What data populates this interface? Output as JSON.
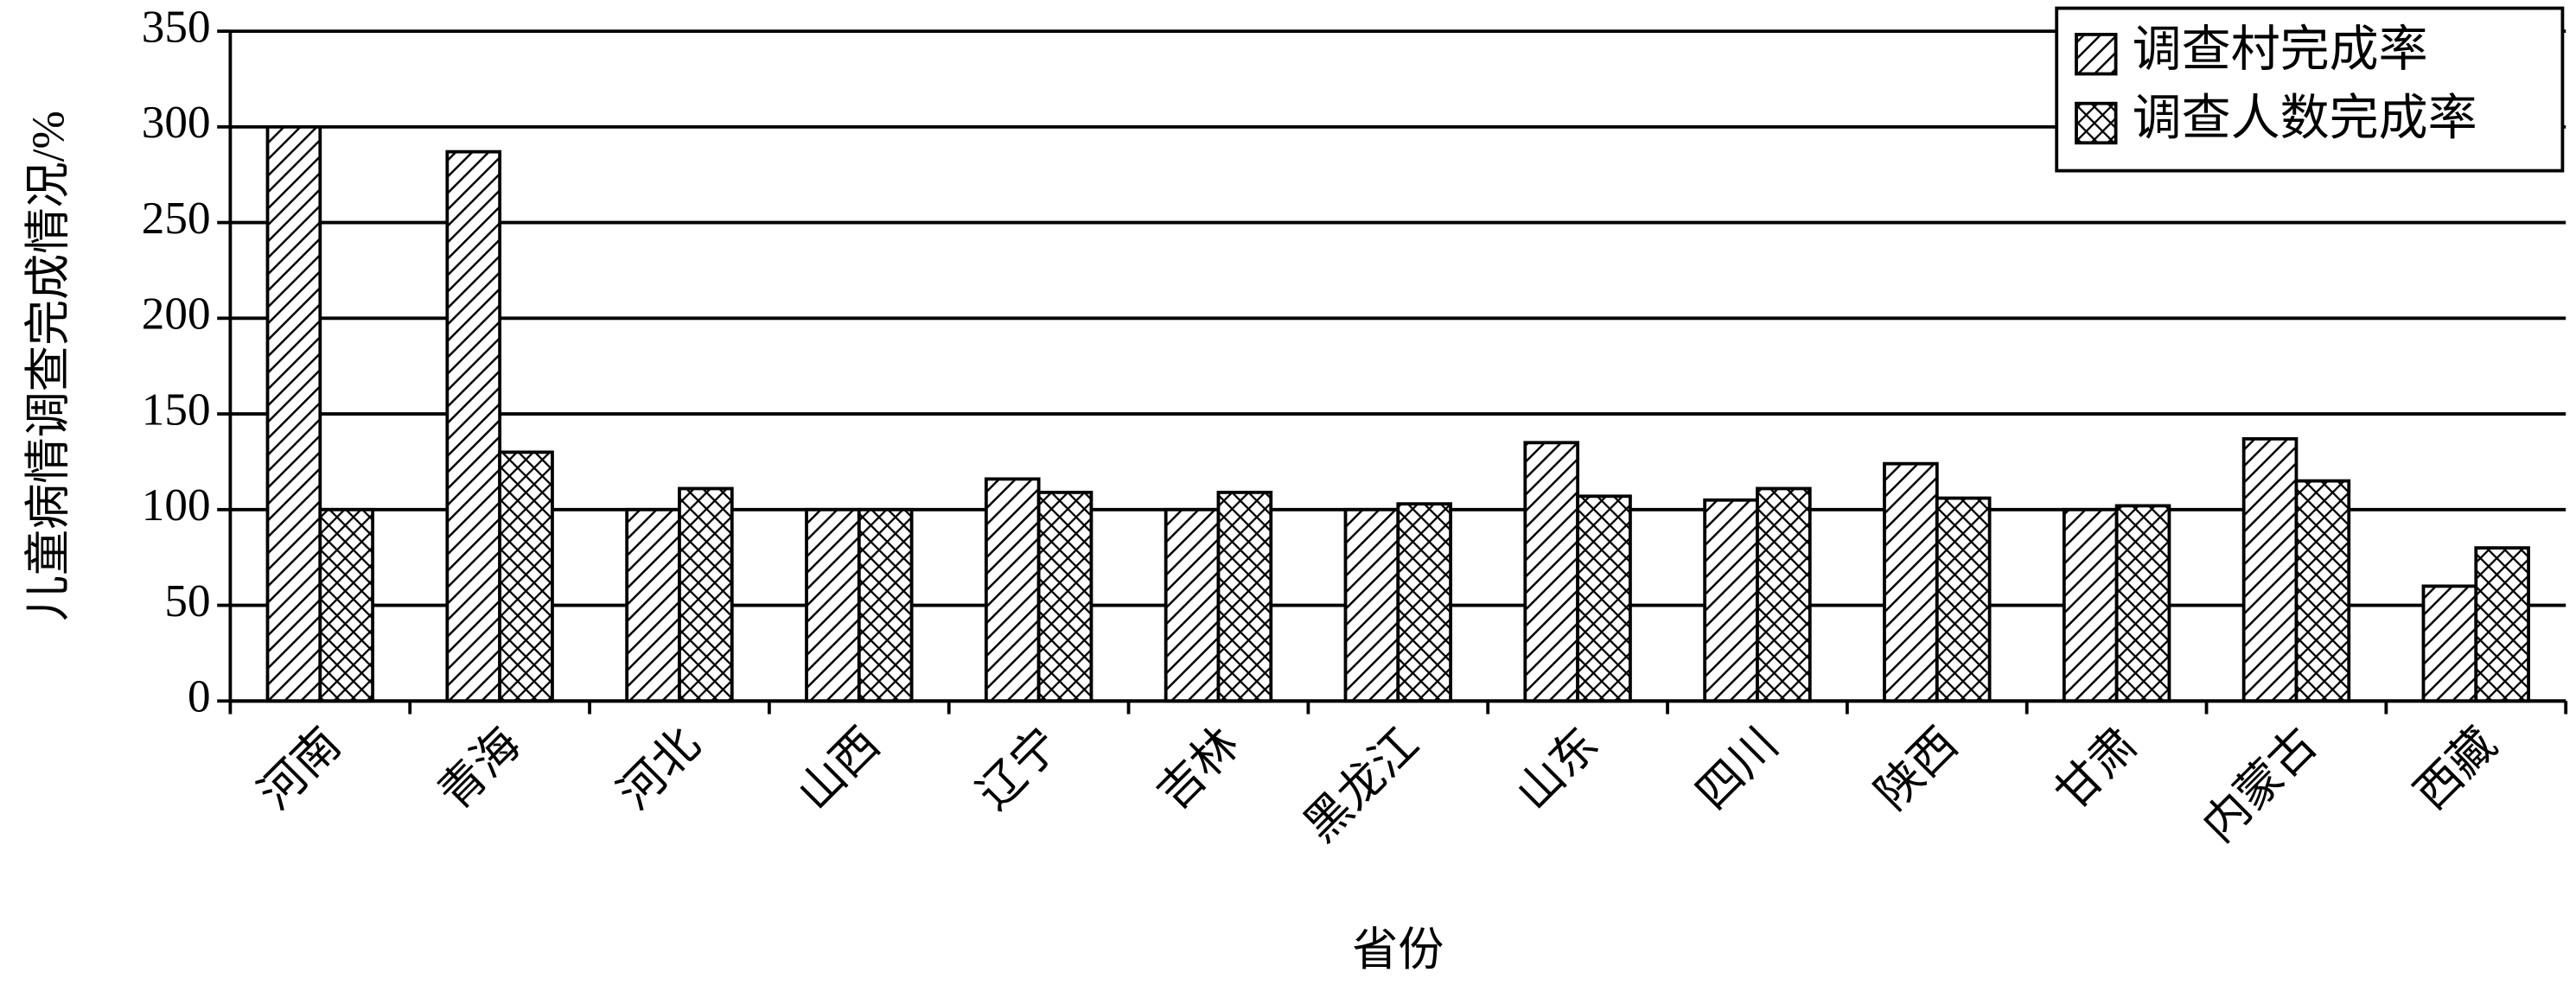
{
  "chart_data": {
    "type": "bar",
    "x_label": "省份",
    "y_label": "儿童病情调查完成情况/%",
    "categories": [
      "河南",
      "青海",
      "河北",
      "山西",
      "辽宁",
      "吉林",
      "黑龙江",
      "山东",
      "四川",
      "陕西",
      "甘肃",
      "内蒙古",
      "西藏"
    ],
    "series": [
      {
        "name": "调查村完成率",
        "color": "#000000",
        "pattern": "hatch",
        "values": [
          300,
          287,
          100,
          100,
          116,
          100,
          100,
          135,
          105,
          124,
          100,
          137,
          60
        ]
      },
      {
        "name": "调查人数完成率",
        "color": "#000000",
        "pattern": "crosshatch",
        "values": [
          100,
          130,
          111,
          100,
          109,
          109,
          103,
          107,
          111,
          106,
          102,
          115,
          80
        ]
      }
    ],
    "ylim": [
      0,
      350
    ],
    "yticks": [
      0,
      50,
      100,
      150,
      200,
      250,
      300,
      350
    ],
    "grid": true,
    "legend": "upper right"
  }
}
